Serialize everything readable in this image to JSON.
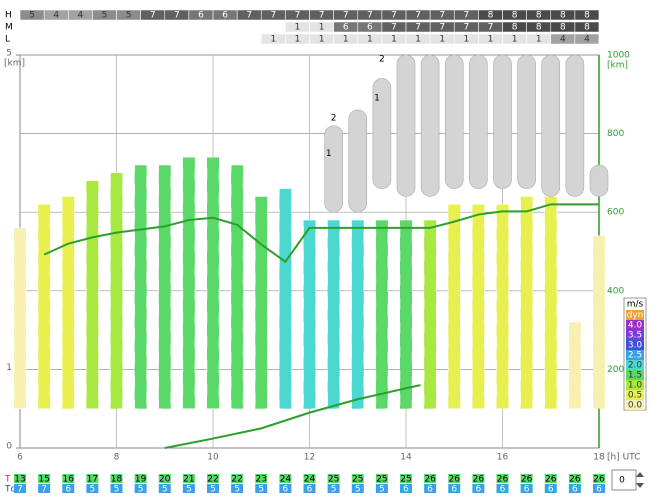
{
  "chart_data": {
    "type": "meteogram",
    "x": [
      6,
      6.5,
      7,
      7.5,
      8,
      8.5,
      9,
      9.5,
      10,
      10.5,
      11,
      11.5,
      12,
      12.5,
      13,
      13.5,
      14,
      14.5,
      15,
      15.5,
      16,
      16.5,
      17,
      17.5,
      18
    ],
    "xlim": [
      6,
      18
    ],
    "xticks": [
      6,
      8,
      10,
      12,
      14,
      16,
      18
    ],
    "x_label": "[h] UTC",
    "ylim": [
      0,
      5
    ],
    "yticks": [
      0,
      1,
      5
    ],
    "y_label": "[km]",
    "y2lim": [
      0,
      1000
    ],
    "y2ticks": [
      200,
      400,
      600,
      800,
      1000
    ],
    "y2_label": "[km]",
    "y2_color": "#2a9d2a",
    "thermal_base": 0.5,
    "thermal_top": [
      2.8,
      3.1,
      3.2,
      3.4,
      3.5,
      3.6,
      3.6,
      3.7,
      3.7,
      3.6,
      3.2,
      3.3,
      2.9,
      2.9,
      2.9,
      2.9,
      2.9,
      2.9,
      3.1,
      3.1,
      3.1,
      3.2,
      3.2,
      1.6,
      2.7
    ],
    "climb": [
      0,
      0.5,
      0.5,
      1,
      1,
      1.5,
      1.5,
      1.5,
      1.5,
      1.5,
      1.5,
      2,
      2,
      2,
      2,
      1.5,
      1.5,
      1,
      0.5,
      0.5,
      0.5,
      0.5,
      0.5,
      0,
      0
    ],
    "bl_height": [
      null,
      2.46,
      2.6,
      2.68,
      2.74,
      2.78,
      2.82,
      2.9,
      2.93,
      2.84,
      2.59,
      2.37,
      2.8,
      2.8,
      2.8,
      2.8,
      2.8,
      2.8,
      2.88,
      2.97,
      3.01,
      3.01,
      3.1,
      3.1,
      3.1
    ],
    "bl_color": "#2ca02c",
    "cloud_base": [
      null,
      null,
      null,
      null,
      null,
      null,
      null,
      null,
      null,
      null,
      null,
      null,
      null,
      3.0,
      3.0,
      3.3,
      3.2,
      3.2,
      3.3,
      3.3,
      3.3,
      3.3,
      3.2,
      3.2,
      3.2
    ],
    "cloud_top": [
      null,
      null,
      null,
      null,
      null,
      null,
      null,
      null,
      null,
      null,
      null,
      null,
      null,
      4.1,
      4.3,
      4.7,
      5.0,
      5.0,
      5.0,
      5.0,
      5.0,
      5.0,
      5.0,
      5.0,
      3.6
    ],
    "ground_line": {
      "x": [
        9,
        10,
        11,
        12,
        13,
        14,
        14.3
      ],
      "values": [
        0,
        0.12,
        0.25,
        0.45,
        0.62,
        0.76,
        0.8
      ]
    },
    "annotations": [
      {
        "text": "2",
        "x": 12.5,
        "y": 4.2
      },
      {
        "text": "1",
        "x": 12.4,
        "y": 3.75
      },
      {
        "text": "2",
        "x": 13.5,
        "y": 4.95
      },
      {
        "text": "1",
        "x": 13.4,
        "y": 4.45
      }
    ],
    "cloud_rows": [
      {
        "label": "H",
        "values": [
          5,
          4,
          4,
          5,
          5,
          7,
          7,
          6,
          6,
          7,
          7,
          7,
          7,
          7,
          7,
          7,
          7,
          7,
          7,
          8,
          8,
          8,
          8,
          8
        ]
      },
      {
        "label": "M",
        "values": [
          null,
          null,
          null,
          null,
          null,
          null,
          null,
          null,
          null,
          null,
          null,
          1,
          1,
          6,
          6,
          7,
          7,
          7,
          7,
          7,
          8,
          8,
          8,
          8
        ]
      },
      {
        "label": "L",
        "values": [
          null,
          null,
          null,
          null,
          null,
          null,
          null,
          null,
          null,
          null,
          1,
          1,
          1,
          1,
          1,
          1,
          1,
          1,
          1,
          1,
          1,
          1,
          4,
          4
        ]
      }
    ],
    "legend": {
      "title": "m/s",
      "items": [
        {
          "label": "dyn",
          "color": "#f0a030"
        },
        {
          "value": 4,
          "label": "4.0",
          "color": "#9b30c8"
        },
        {
          "value": 3.5,
          "label": "3.5",
          "color": "#7a3ad8"
        },
        {
          "value": 3,
          "label": "3.0",
          "color": "#3a50e0"
        },
        {
          "value": 2.5,
          "label": "2.5",
          "color": "#3aa0e8"
        },
        {
          "value": 2,
          "label": "2.0",
          "color": "#4ad8d0"
        },
        {
          "value": 1.5,
          "label": "1.5",
          "color": "#5ad868"
        },
        {
          "value": 1,
          "label": "1.0",
          "color": "#a8e840"
        },
        {
          "value": 0.5,
          "label": "0.5",
          "color": "#e8f050"
        },
        {
          "value": 0,
          "label": "0.0",
          "color": "#f8f0b0"
        }
      ]
    },
    "T_label": "T",
    "Td_label": "Td",
    "T": [
      13,
      15,
      16,
      17,
      18,
      19,
      20,
      21,
      22,
      22,
      23,
      24,
      24,
      25,
      25,
      25,
      25,
      26,
      26,
      26,
      26,
      26,
      26,
      26,
      26
    ],
    "Td": [
      7,
      7,
      6,
      5,
      5,
      5,
      5,
      5,
      5,
      5,
      5,
      6,
      6,
      5,
      5,
      5,
      6,
      6,
      6,
      6,
      6,
      6,
      6,
      6,
      6
    ],
    "spinner": 0
  }
}
